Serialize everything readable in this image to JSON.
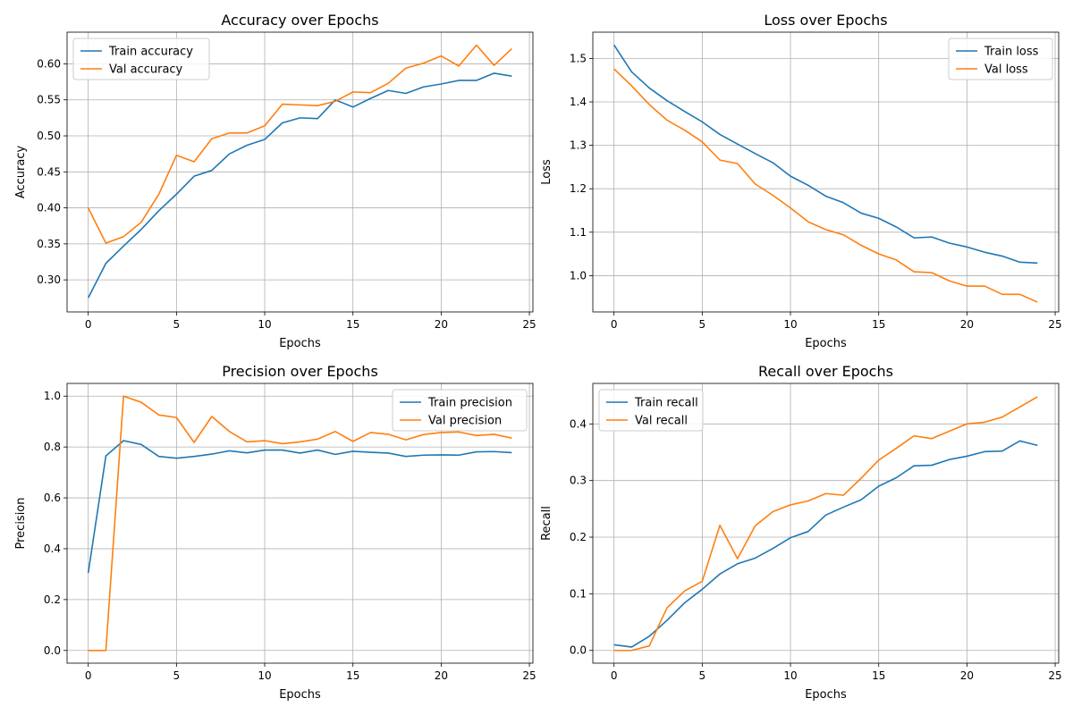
{
  "chart_data": [
    {
      "type": "line",
      "title": "Accuracy over Epochs",
      "xlabel": "Epochs",
      "ylabel": "Accuracy",
      "xlim": [
        -1.2,
        25.2
      ],
      "ylim": [
        0.2555,
        0.644
      ],
      "xticks": [
        0,
        5,
        10,
        15,
        20,
        25
      ],
      "yticks": [
        0.3,
        0.35,
        0.4,
        0.45,
        0.5,
        0.55,
        0.6
      ],
      "ytick_labels": [
        "0.30",
        "0.35",
        "0.40",
        "0.45",
        "0.50",
        "0.55",
        "0.60"
      ],
      "grid": true,
      "legend_position": "top-left",
      "x": [
        0,
        1,
        2,
        3,
        4,
        5,
        6,
        7,
        8,
        9,
        10,
        11,
        12,
        13,
        14,
        15,
        16,
        17,
        18,
        19,
        20,
        21,
        22,
        23,
        24
      ],
      "series": [
        {
          "name": "Train accuracy",
          "color": "#1f77b4",
          "values": [
            0.275,
            0.323,
            0.347,
            0.37,
            0.396,
            0.419,
            0.444,
            0.452,
            0.475,
            0.487,
            0.495,
            0.518,
            0.525,
            0.524,
            0.55,
            0.54,
            0.552,
            0.563,
            0.559,
            0.568,
            0.572,
            0.577,
            0.577,
            0.587,
            0.583
          ]
        },
        {
          "name": "Val accuracy",
          "color": "#ff7f0e",
          "values": [
            0.4,
            0.351,
            0.36,
            0.38,
            0.419,
            0.473,
            0.464,
            0.496,
            0.504,
            0.504,
            0.514,
            0.544,
            0.543,
            0.542,
            0.548,
            0.561,
            0.56,
            0.573,
            0.594,
            0.601,
            0.611,
            0.597,
            0.626,
            0.598,
            0.621
          ]
        }
      ]
    },
    {
      "type": "line",
      "title": "Loss over Epochs",
      "xlabel": "Epochs",
      "ylabel": "Loss",
      "xlim": [
        -1.2,
        25.2
      ],
      "ylim": [
        0.9165,
        1.5605
      ],
      "xticks": [
        0,
        5,
        10,
        15,
        20,
        25
      ],
      "yticks": [
        1.0,
        1.1,
        1.2,
        1.3,
        1.4,
        1.5
      ],
      "ytick_labels": [
        "1.0",
        "1.1",
        "1.2",
        "1.3",
        "1.4",
        "1.5"
      ],
      "grid": true,
      "legend_position": "top-right",
      "x": [
        0,
        1,
        2,
        3,
        4,
        5,
        6,
        7,
        8,
        9,
        10,
        11,
        12,
        13,
        14,
        15,
        16,
        17,
        18,
        19,
        20,
        21,
        22,
        23,
        24
      ],
      "series": [
        {
          "name": "Train loss",
          "color": "#1f77b4",
          "values": [
            1.531,
            1.469,
            1.432,
            1.403,
            1.378,
            1.354,
            1.325,
            1.303,
            1.281,
            1.26,
            1.229,
            1.208,
            1.183,
            1.168,
            1.144,
            1.132,
            1.112,
            1.087,
            1.089,
            1.075,
            1.066,
            1.054,
            1.045,
            1.031,
            1.029
          ]
        },
        {
          "name": "Val loss",
          "color": "#ff7f0e",
          "values": [
            1.476,
            1.437,
            1.394,
            1.358,
            1.335,
            1.308,
            1.266,
            1.258,
            1.211,
            1.185,
            1.156,
            1.124,
            1.106,
            1.094,
            1.07,
            1.05,
            1.036,
            1.009,
            1.007,
            0.988,
            0.976,
            0.976,
            0.957,
            0.957,
            0.939
          ]
        }
      ]
    },
    {
      "type": "line",
      "title": "Precision over Epochs",
      "xlabel": "Epochs",
      "ylabel": "Precision",
      "xlim": [
        -1.2,
        25.2
      ],
      "ylim": [
        -0.05,
        1.05
      ],
      "xticks": [
        0,
        5,
        10,
        15,
        20,
        25
      ],
      "yticks": [
        0.0,
        0.2,
        0.4,
        0.6,
        0.8,
        1.0
      ],
      "ytick_labels": [
        "0.0",
        "0.2",
        "0.4",
        "0.6",
        "0.8",
        "1.0"
      ],
      "grid": true,
      "legend_position": "top-right",
      "x": [
        0,
        1,
        2,
        3,
        4,
        5,
        6,
        7,
        8,
        9,
        10,
        11,
        12,
        13,
        14,
        15,
        16,
        17,
        18,
        19,
        20,
        21,
        22,
        23,
        24
      ],
      "series": [
        {
          "name": "Train precision",
          "color": "#1f77b4",
          "values": [
            0.305,
            0.765,
            0.825,
            0.81,
            0.763,
            0.756,
            0.763,
            0.772,
            0.785,
            0.777,
            0.788,
            0.788,
            0.776,
            0.788,
            0.771,
            0.783,
            0.779,
            0.776,
            0.763,
            0.768,
            0.769,
            0.768,
            0.781,
            0.782,
            0.778
          ]
        },
        {
          "name": "Val precision",
          "color": "#ff7f0e",
          "values": [
            0.0,
            0.0,
            1.0,
            0.976,
            0.926,
            0.916,
            0.818,
            0.92,
            0.861,
            0.82,
            0.825,
            0.813,
            0.82,
            0.831,
            0.861,
            0.822,
            0.857,
            0.85,
            0.828,
            0.849,
            0.857,
            0.859,
            0.845,
            0.85,
            0.835
          ]
        }
      ]
    },
    {
      "type": "line",
      "title": "Recall over Epochs",
      "xlabel": "Epochs",
      "ylabel": "Recall",
      "xlim": [
        -1.2,
        25.2
      ],
      "ylim": [
        -0.0225,
        0.4715
      ],
      "xticks": [
        0,
        5,
        10,
        15,
        20,
        25
      ],
      "yticks": [
        0.0,
        0.1,
        0.2,
        0.3,
        0.4
      ],
      "ytick_labels": [
        "0.0",
        "0.1",
        "0.2",
        "0.3",
        "0.4"
      ],
      "grid": true,
      "legend_position": "top-left",
      "x": [
        0,
        1,
        2,
        3,
        4,
        5,
        6,
        7,
        8,
        9,
        10,
        11,
        12,
        13,
        14,
        15,
        16,
        17,
        18,
        19,
        20,
        21,
        22,
        23,
        24
      ],
      "series": [
        {
          "name": "Train recall",
          "color": "#1f77b4",
          "values": [
            0.01,
            0.006,
            0.025,
            0.053,
            0.084,
            0.108,
            0.135,
            0.153,
            0.163,
            0.18,
            0.199,
            0.21,
            0.239,
            0.253,
            0.266,
            0.29,
            0.305,
            0.326,
            0.327,
            0.337,
            0.343,
            0.351,
            0.352,
            0.37,
            0.362
          ]
        },
        {
          "name": "Val recall",
          "color": "#ff7f0e",
          "values": [
            0.0,
            0.0,
            0.008,
            0.075,
            0.105,
            0.122,
            0.221,
            0.162,
            0.22,
            0.245,
            0.257,
            0.264,
            0.277,
            0.274,
            0.304,
            0.336,
            0.357,
            0.379,
            0.374,
            0.387,
            0.4,
            0.403,
            0.412,
            0.43,
            0.448
          ]
        }
      ]
    }
  ]
}
